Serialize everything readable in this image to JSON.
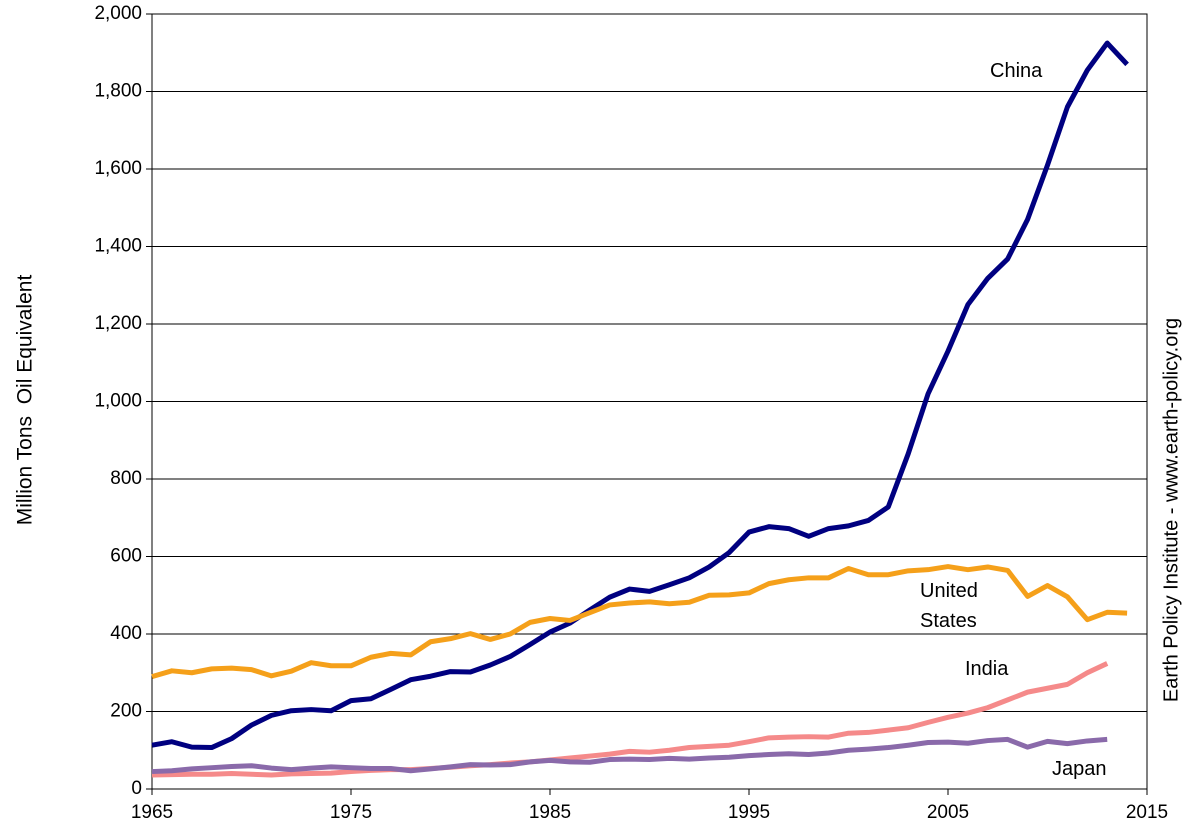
{
  "chart_data": {
    "type": "line",
    "ylabel": "Million Tons  Oil Equivalent",
    "source": "Earth Policy Institute - www.earth-policy.org",
    "x": [
      1965,
      1966,
      1967,
      1968,
      1969,
      1970,
      1971,
      1972,
      1973,
      1974,
      1975,
      1976,
      1977,
      1978,
      1979,
      1980,
      1981,
      1982,
      1983,
      1984,
      1985,
      1986,
      1987,
      1988,
      1989,
      1990,
      1991,
      1992,
      1993,
      1994,
      1995,
      1996,
      1997,
      1998,
      1999,
      2000,
      2001,
      2002,
      2003,
      2004,
      2005,
      2006,
      2007,
      2008,
      2009,
      2010,
      2011,
      2012,
      2013,
      2014
    ],
    "series": [
      {
        "name": "China",
        "color": "#000080",
        "values": [
          113,
          122,
          108,
          107,
          130,
          165,
          190,
          202,
          205,
          202,
          228,
          233,
          257,
          282,
          291,
          303,
          302,
          320,
          342,
          373,
          405,
          428,
          462,
          495,
          516,
          510,
          527,
          545,
          573,
          610,
          663,
          677,
          672,
          652,
          672,
          679,
          693,
          728,
          865,
          1020,
          1130,
          1250,
          1318,
          1368,
          1470,
          1610,
          1760,
          1855,
          1925,
          1870
        ]
      },
      {
        "name": "United States",
        "color": "#f5a01a",
        "values": [
          290,
          305,
          300,
          310,
          312,
          308,
          292,
          304,
          326,
          318,
          318,
          340,
          350,
          346,
          380,
          388,
          401,
          386,
          400,
          430,
          440,
          435,
          455,
          475,
          480,
          483,
          478,
          482,
          500,
          501,
          506,
          530,
          540,
          545,
          545,
          569,
          553,
          553,
          563,
          566,
          574,
          566,
          573,
          564,
          497,
          525,
          496,
          437,
          456,
          454
        ]
      },
      {
        "name": "India",
        "color": "#f58a8a",
        "values": [
          36,
          37,
          38,
          38,
          40,
          38,
          36,
          39,
          40,
          41,
          45,
          48,
          50,
          50,
          53,
          56,
          60,
          63,
          67,
          70,
          75,
          80,
          85,
          90,
          97,
          95,
          100,
          107,
          110,
          113,
          122,
          132,
          134,
          135,
          134,
          144,
          146,
          152,
          158,
          172,
          185,
          196,
          210,
          230,
          250,
          260,
          270,
          300,
          324,
          null
        ]
      },
      {
        "name": "Japan",
        "color": "#8a6aaa",
        "values": [
          45,
          47,
          52,
          55,
          58,
          60,
          54,
          50,
          54,
          57,
          55,
          53,
          53,
          47,
          52,
          57,
          63,
          62,
          63,
          70,
          74,
          70,
          69,
          76,
          77,
          76,
          79,
          77,
          80,
          82,
          86,
          89,
          91,
          89,
          93,
          100,
          103,
          107,
          113,
          120,
          121,
          118,
          125,
          128,
          108,
          123,
          117,
          124,
          128,
          null
        ]
      }
    ],
    "xlim": [
      1965,
      2015
    ],
    "xticks": [
      1965,
      1975,
      1985,
      1995,
      2005,
      2015
    ],
    "ylim": [
      0,
      2000
    ],
    "yticks": [
      0,
      200,
      400,
      600,
      800,
      {
        "value": 1000,
        "label": "1,000"
      },
      {
        "value": 1200,
        "label": "1,200"
      },
      {
        "value": 1400,
        "label": "1,400"
      },
      {
        "value": 1600,
        "label": "1,600"
      },
      {
        "value": 1800,
        "label": "1,800"
      },
      {
        "value": 2000,
        "label": "2,000"
      }
    ],
    "grid": true
  }
}
